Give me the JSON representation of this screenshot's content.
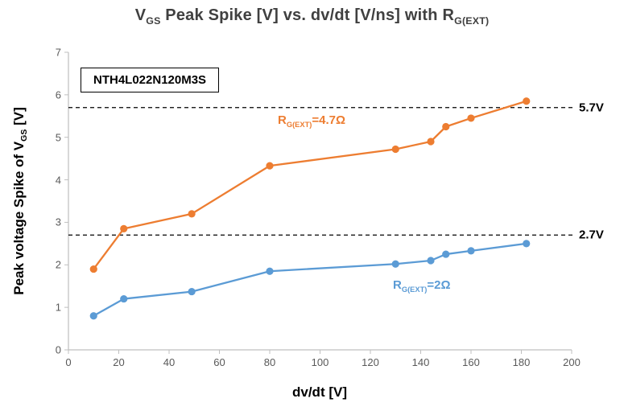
{
  "title": {
    "p1": "V",
    "p1_sub": "GS",
    "p2": " Peak Spike [V] vs. dv/dt [V/ns] with R",
    "p3_sub": "G(EXT)"
  },
  "device_label": "NTH4L022N120M3S",
  "y_axis": {
    "label_main": "Peak voltage Spike of V",
    "label_sub": "GS",
    "label_end": " [V]"
  },
  "x_axis": {
    "label": "dv/dt [V]"
  },
  "annotations": {
    "series1": {
      "prefix": "R",
      "sub": "G(EXT)",
      "suffix": "=4.7Ω"
    },
    "series2": {
      "prefix": "R",
      "sub": "G(EXT)",
      "suffix": "=2Ω"
    }
  },
  "colors": {
    "orange": "#ED7D31",
    "blue": "#5B9BD5",
    "title_gray": "#404040",
    "axis_gray": "#BFBFBF",
    "tick_gray": "#595959",
    "ref_black": "#000000"
  },
  "chart_data": {
    "type": "line",
    "title": "V_GS Peak Spike [V] vs. dv/dt [V/ns] with R_G(EXT)",
    "xlabel": "dv/dt [V]",
    "ylabel": "Peak voltage Spike of V_GS [V]",
    "xlim": [
      0,
      200
    ],
    "ylim": [
      0,
      7
    ],
    "x_ticks": [
      0,
      20,
      40,
      60,
      80,
      100,
      120,
      140,
      160,
      180,
      200
    ],
    "y_ticks": [
      0,
      1,
      2,
      3,
      4,
      5,
      6,
      7
    ],
    "grid": false,
    "legend_position": "inline-annotations",
    "reference_lines": [
      {
        "y": 5.7,
        "label": "5.7V"
      },
      {
        "y": 2.7,
        "label": "2.7V"
      }
    ],
    "series": [
      {
        "name": "R_G(EXT)=4.7Ω",
        "color": "#ED7D31",
        "x": [
          10,
          22,
          49,
          80,
          130,
          144,
          150,
          160,
          182
        ],
        "y": [
          1.9,
          2.85,
          3.2,
          4.33,
          4.72,
          4.9,
          5.25,
          5.45,
          5.85
        ]
      },
      {
        "name": "R_G(EXT)=2Ω",
        "color": "#5B9BD5",
        "x": [
          10,
          22,
          49,
          80,
          130,
          144,
          150,
          160,
          182
        ],
        "y": [
          0.8,
          1.2,
          1.37,
          1.85,
          2.02,
          2.1,
          2.25,
          2.33,
          2.5
        ]
      }
    ]
  }
}
